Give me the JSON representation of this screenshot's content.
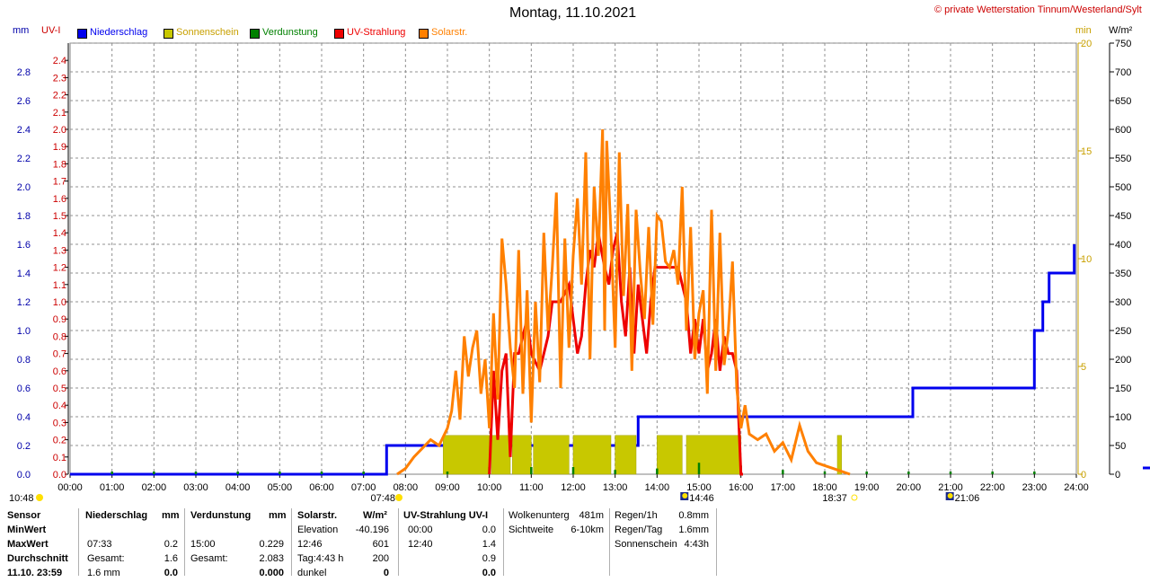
{
  "header": {
    "title": "Montag, 11.10.2021",
    "copyright": "© private Wetterstation Tinnum/Westerland/Sylt",
    "unit_mm": "mm",
    "unit_uvi": "UV-I",
    "unit_min": "min",
    "unit_wm2": "W/m²"
  },
  "legend": [
    {
      "label": "Niederschlag",
      "color": "#0000ee"
    },
    {
      "label": "Sonnenschein",
      "color": "#c8c800"
    },
    {
      "label": "Verdunstung",
      "color": "#008000"
    },
    {
      "label": "UV-Strahlung",
      "color": "#ee0000"
    },
    {
      "label": "Solarstr.",
      "color": "#ff8000"
    }
  ],
  "chart_data": {
    "type": "line",
    "title": "Montag, 11.10.2021",
    "x_ticks": [
      "00:00",
      "01:00",
      "02:00",
      "03:00",
      "04:00",
      "05:00",
      "06:00",
      "07:00",
      "08:00",
      "09:00",
      "10:00",
      "11:00",
      "12:00",
      "13:00",
      "14:00",
      "15:00",
      "16:00",
      "17:00",
      "18:00",
      "19:00",
      "20:00",
      "21:00",
      "22:00",
      "23:00",
      "24:00"
    ],
    "xlim_hours": [
      0,
      24
    ],
    "mm_axis": {
      "label": "mm",
      "ticks": [
        "0.0",
        "0.2",
        "0.4",
        "0.6",
        "0.8",
        "1.0",
        "1.2",
        "1.4",
        "1.6",
        "1.8",
        "2.0",
        "2.2",
        "2.4",
        "2.6",
        "2.8"
      ],
      "ylim": [
        0,
        3.0
      ],
      "color": "#0000aa"
    },
    "uvi_axis": {
      "label": "UV-I",
      "ticks": [
        "0.0",
        "0.1",
        "0.2",
        "0.3",
        "0.4",
        "0.5",
        "0.6",
        "0.7",
        "0.8",
        "0.9",
        "1.0",
        "1.1",
        "1.2",
        "1.3",
        "1.4",
        "1.5",
        "1.6",
        "1.7",
        "1.8",
        "1.9",
        "2.0",
        "2.1",
        "2.2",
        "2.3",
        "2.4"
      ],
      "ylim": [
        0,
        2.5
      ],
      "color": "#cc0000"
    },
    "min_axis": {
      "label": "min",
      "ticks": [
        "0",
        "5",
        "10",
        "15",
        "20"
      ],
      "ylim": [
        0,
        20
      ],
      "color": "#c8a000"
    },
    "wm2_axis": {
      "label": "W/m²",
      "ticks": [
        "0",
        "50",
        "100",
        "150",
        "200",
        "250",
        "300",
        "350",
        "400",
        "450",
        "500",
        "550",
        "600",
        "650",
        "700",
        "750"
      ],
      "ylim": [
        0,
        750
      ],
      "color": "#000000"
    },
    "grid": true,
    "series": [
      {
        "name": "Niederschlag",
        "axis": "mm",
        "color": "#0000ee",
        "step": true,
        "x": [
          0,
          7.55,
          7.55,
          13.55,
          13.55,
          20.1,
          20.1,
          23.0,
          23.0,
          23.2,
          23.2,
          23.35,
          23.35,
          23.95,
          23.95
        ],
        "y": [
          0,
          0,
          0.2,
          0.2,
          0.4,
          0.4,
          0.6,
          0.6,
          1.0,
          1.0,
          1.2,
          1.2,
          1.4,
          1.4,
          1.6
        ]
      },
      {
        "name": "Sonnenschein",
        "axis": "min",
        "color": "#c8c800",
        "type": "bar",
        "intervals": [
          [
            8.9,
            10.0
          ],
          [
            10.05,
            10.5
          ],
          [
            10.55,
            11.0
          ],
          [
            11.05,
            11.9
          ],
          [
            12.0,
            12.9
          ],
          [
            13.0,
            13.5
          ],
          [
            14.0,
            14.6
          ],
          [
            14.7,
            16.0
          ],
          [
            18.3,
            18.4
          ]
        ],
        "level": 1.0
      },
      {
        "name": "Verdunstung",
        "axis": "mm",
        "color": "#008000",
        "type": "ticks",
        "x": [
          1.0,
          2.0,
          3.0,
          4.0,
          5.0,
          6.0,
          7.0,
          9.0,
          10.0,
          11.0,
          12.0,
          13.0,
          14.0,
          15.0,
          16.0,
          17.0,
          18.0,
          19.0,
          20.0,
          21.0,
          22.0,
          23.0
        ],
        "y": [
          0.005,
          0.005,
          0.005,
          0.015,
          0.015,
          0.01,
          0.01,
          0.01,
          0.05,
          0.05,
          0.05,
          0.03,
          0.04,
          0.08,
          0.06,
          0.03,
          0.02,
          0.01,
          0.01,
          0.01,
          0.01,
          0.015
        ]
      },
      {
        "name": "UV-Strahlung",
        "axis": "uvi",
        "color": "#ee0000",
        "x": [
          10.0,
          10.1,
          10.2,
          10.3,
          10.4,
          10.5,
          10.6,
          10.7,
          10.8,
          10.9,
          11.0,
          11.2,
          11.4,
          11.5,
          11.7,
          11.9,
          12.0,
          12.1,
          12.2,
          12.3,
          12.4,
          12.5,
          12.6,
          12.67,
          12.75,
          12.85,
          12.95,
          13.05,
          13.15,
          13.25,
          13.35,
          13.45,
          13.55,
          13.65,
          13.75,
          13.85,
          13.95,
          14.05,
          14.15,
          14.3,
          14.5,
          14.7,
          14.8,
          14.9,
          15.0,
          15.1,
          15.2,
          15.3,
          15.4,
          15.5,
          15.6,
          15.7,
          15.8,
          15.9,
          16.0,
          16.05
        ],
        "y": [
          0.0,
          0.6,
          0.2,
          0.6,
          0.7,
          0.1,
          0.7,
          0.7,
          0.8,
          0.9,
          0.7,
          0.6,
          0.8,
          1.0,
          1.0,
          1.1,
          0.9,
          0.7,
          0.8,
          1.1,
          1.3,
          1.2,
          1.4,
          1.3,
          1.2,
          1.1,
          1.3,
          1.4,
          1.0,
          0.8,
          1.2,
          0.7,
          1.1,
          0.9,
          0.7,
          1.0,
          1.2,
          1.2,
          1.2,
          1.2,
          1.2,
          1.0,
          0.7,
          0.9,
          0.7,
          0.9,
          0.6,
          0.7,
          0.9,
          0.6,
          0.8,
          0.7,
          0.7,
          0.6,
          0.0,
          0.0
        ]
      },
      {
        "name": "Solarstr.",
        "axis": "wm2",
        "color": "#ff8000",
        "x": [
          7.8,
          8.0,
          8.2,
          8.4,
          8.6,
          8.8,
          9.0,
          9.1,
          9.2,
          9.3,
          9.4,
          9.5,
          9.6,
          9.7,
          9.8,
          9.9,
          10.0,
          10.1,
          10.2,
          10.3,
          10.4,
          10.5,
          10.6,
          10.7,
          10.8,
          10.9,
          11.0,
          11.1,
          11.2,
          11.3,
          11.4,
          11.5,
          11.6,
          11.7,
          11.8,
          11.9,
          12.0,
          12.1,
          12.2,
          12.3,
          12.4,
          12.5,
          12.6,
          12.7,
          12.75,
          12.8,
          12.9,
          13.0,
          13.1,
          13.2,
          13.3,
          13.4,
          13.5,
          13.6,
          13.7,
          13.8,
          13.9,
          14.0,
          14.1,
          14.2,
          14.3,
          14.4,
          14.5,
          14.6,
          14.7,
          14.8,
          14.9,
          15.0,
          15.1,
          15.2,
          15.3,
          15.4,
          15.5,
          15.6,
          15.7,
          15.8,
          15.9,
          16.0,
          16.1,
          16.2,
          16.4,
          16.6,
          16.8,
          17.0,
          17.2,
          17.4,
          17.6,
          17.8,
          18.0,
          18.2,
          18.4,
          18.6
        ],
        "y": [
          0,
          10,
          30,
          45,
          60,
          50,
          80,
          110,
          180,
          95,
          240,
          170,
          220,
          250,
          140,
          200,
          80,
          280,
          130,
          410,
          330,
          220,
          150,
          390,
          140,
          320,
          90,
          300,
          160,
          420,
          250,
          360,
          490,
          150,
          410,
          220,
          380,
          480,
          330,
          560,
          200,
          500,
          380,
          600,
          250,
          580,
          420,
          220,
          560,
          310,
          470,
          180,
          460,
          350,
          270,
          430,
          260,
          450,
          440,
          370,
          360,
          390,
          330,
          500,
          250,
          430,
          200,
          280,
          320,
          140,
          460,
          180,
          420,
          190,
          250,
          370,
          150,
          80,
          120,
          70,
          60,
          70,
          40,
          55,
          25,
          85,
          40,
          20,
          15,
          10,
          5,
          0
        ]
      }
    ],
    "time_markers": [
      {
        "label": "10:48",
        "hour": 0
      },
      {
        "label": "07:48",
        "hour": 7.8
      },
      {
        "label": "14:46",
        "hour": 14.77
      },
      {
        "label": "18:37",
        "hour": 18.62
      },
      {
        "label": "21:06",
        "hour": 21.1
      }
    ]
  },
  "table": {
    "col_headers": [
      "Sensor",
      "Niederschlag",
      "mm",
      "Verdunstung",
      "mm",
      "Solarstr.",
      "W/m²",
      "UV-Strahlung UV-I"
    ],
    "rows": [
      {
        "label": "MinWert",
        "n1": "",
        "n2": "",
        "v1": "",
        "v2": "",
        "s1": "Elevation",
        "s2": "-40.196",
        "u1": "00:00",
        "u2": "0.0"
      },
      {
        "label": "MaxWert",
        "n1": "07:33",
        "n2": "0.2",
        "v1": "15:00",
        "v2": "0.229",
        "s1": "12:46",
        "s2": "601",
        "u1": "12:40",
        "u2": "1.4"
      },
      {
        "label": "",
        "n1": "Gesamt:",
        "n2": "1.6",
        "v1": "Gesamt:",
        "v2": "2.083",
        "s1": "Tag:4:43 h",
        "s2": "200",
        "u1": "",
        "u2": "0.9"
      },
      {
        "label": "11.10. 23:59",
        "n1": "1.6 mm",
        "n2": "0.0",
        "v1": "",
        "v2": "0.000",
        "s1": "dunkel",
        "s2": "0",
        "u1": "",
        "u2": "0.0"
      }
    ],
    "info1": [
      {
        "k": "Wolkenunterg",
        "v": "481m"
      },
      {
        "k": "Sichtweite",
        "v": "6-10km"
      }
    ],
    "info2": [
      {
        "k": "Regen/1h",
        "v": "0.8mm"
      },
      {
        "k": "Regen/Tag",
        "v": "1.6mm"
      },
      {
        "k": "Sonnenschein",
        "v": "4:43h"
      }
    ],
    "durchschnitt_label": "Durchschnitt"
  }
}
